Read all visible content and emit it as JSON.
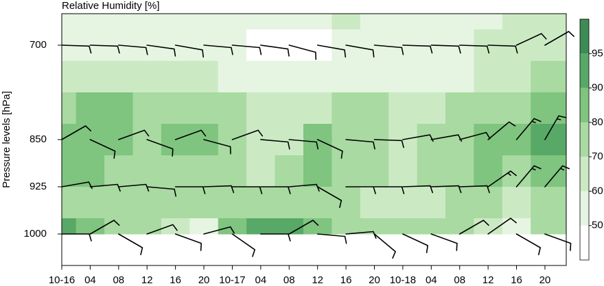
{
  "chart_data": {
    "type": "contour",
    "title": "Relative Humidity [%]",
    "y_label": "Pressure levels [hPa]",
    "xlim": [
      0,
      71
    ],
    "xticks": [
      {
        "value": 0,
        "label": "10-16"
      },
      {
        "value": 4,
        "label": "04"
      },
      {
        "value": 8,
        "label": "08"
      },
      {
        "value": 12,
        "label": "12"
      },
      {
        "value": 16,
        "label": "16"
      },
      {
        "value": 20,
        "label": "20"
      },
      {
        "value": 24,
        "label": "10-17"
      },
      {
        "value": 28,
        "label": "04"
      },
      {
        "value": 32,
        "label": "08"
      },
      {
        "value": 36,
        "label": "12"
      },
      {
        "value": 40,
        "label": "16"
      },
      {
        "value": 44,
        "label": "20"
      },
      {
        "value": 48,
        "label": "10-18"
      },
      {
        "value": 52,
        "label": "04"
      },
      {
        "value": 56,
        "label": "08"
      },
      {
        "value": 60,
        "label": "12"
      },
      {
        "value": 64,
        "label": "16"
      },
      {
        "value": 68,
        "label": "20"
      }
    ],
    "ylim": [
      1050,
      650
    ],
    "yticks": [
      700,
      850,
      925,
      1000
    ],
    "levels": [
      40,
      50,
      60,
      70,
      80,
      90,
      95,
      100
    ],
    "level_colors": [
      "#ffffff",
      "#e6f5e1",
      "#cbeac4",
      "#a8daa1",
      "#7fc47f",
      "#58a967",
      "#3d8b55"
    ],
    "colorbar_ticks": [
      50,
      60,
      70,
      80,
      90,
      95
    ],
    "field": {
      "x": [
        0,
        4,
        8,
        12,
        16,
        20,
        24,
        28,
        32,
        36,
        40,
        44,
        48,
        52,
        56,
        60,
        64,
        68
      ],
      "pressure": [
        650,
        700,
        750,
        800,
        850,
        900,
        950,
        1000
      ],
      "values": [
        [
          55,
          55,
          55,
          55,
          55,
          55,
          55,
          55,
          52,
          55,
          62,
          58,
          55,
          55,
          55,
          58,
          66,
          62
        ],
        [
          55,
          55,
          55,
          55,
          55,
          55,
          52,
          45,
          45,
          48,
          55,
          55,
          55,
          55,
          55,
          62,
          66,
          62
        ],
        [
          62,
          62,
          62,
          64,
          62,
          60,
          58,
          55,
          55,
          55,
          55,
          55,
          55,
          55,
          58,
          62,
          68,
          72
        ],
        [
          78,
          82,
          82,
          76,
          78,
          75,
          72,
          62,
          60,
          66,
          72,
          70,
          68,
          66,
          72,
          76,
          78,
          84
        ],
        [
          82,
          86,
          80,
          78,
          84,
          80,
          72,
          64,
          66,
          80,
          78,
          75,
          68,
          72,
          78,
          84,
          86,
          92
        ],
        [
          84,
          82,
          76,
          74,
          76,
          74,
          70,
          66,
          72,
          80,
          76,
          72,
          66,
          72,
          76,
          80,
          78,
          82
        ],
        [
          74,
          74,
          72,
          70,
          72,
          74,
          76,
          78,
          76,
          72,
          70,
          68,
          66,
          68,
          72,
          72,
          60,
          72
        ],
        [
          92,
          82,
          72,
          70,
          66,
          58,
          84,
          93,
          93,
          82,
          72,
          70,
          72,
          70,
          72,
          66,
          55,
          76
        ]
      ]
    },
    "wind_x": [
      0,
      4,
      8,
      12,
      16,
      20,
      24,
      28,
      32,
      36,
      40,
      44,
      48,
      52,
      56,
      60,
      64,
      68
    ],
    "wind": [
      {
        "level": 700,
        "direction": [
          92,
          92,
          95,
          98,
          100,
          95,
          95,
          98,
          105,
          100,
          100,
          95,
          92,
          92,
          92,
          92,
          65,
          60
        ],
        "speed": [
          10,
          10,
          10,
          10,
          10,
          10,
          10,
          10,
          10,
          10,
          10,
          10,
          10,
          10,
          10,
          10,
          10,
          10
        ]
      },
      {
        "level": 850,
        "direction": [
          60,
          115,
          70,
          110,
          70,
          105,
          70,
          95,
          95,
          115,
          95,
          92,
          80,
          80,
          75,
          50,
          40,
          30
        ],
        "speed": [
          10,
          10,
          10,
          10,
          10,
          10,
          10,
          10,
          10,
          10,
          10,
          10,
          10,
          10,
          10,
          10,
          15,
          15
        ]
      },
      {
        "level": 925,
        "direction": [
          80,
          85,
          85,
          95,
          90,
          88,
          90,
          90,
          85,
          120,
          90,
          90,
          88,
          88,
          88,
          55,
          40,
          40
        ],
        "speed": [
          10,
          10,
          10,
          10,
          10,
          10,
          10,
          10,
          10,
          10,
          10,
          10,
          10,
          10,
          10,
          15,
          15,
          15
        ]
      },
      {
        "level": 1000,
        "direction": [
          90,
          60,
          120,
          70,
          110,
          75,
          125,
          90,
          60,
          95,
          85,
          130,
          115,
          110,
          60,
          55,
          120,
          110
        ],
        "speed": [
          10,
          10,
          10,
          10,
          10,
          10,
          10,
          10,
          10,
          10,
          10,
          10,
          10,
          10,
          10,
          10,
          10,
          10
        ]
      }
    ]
  }
}
